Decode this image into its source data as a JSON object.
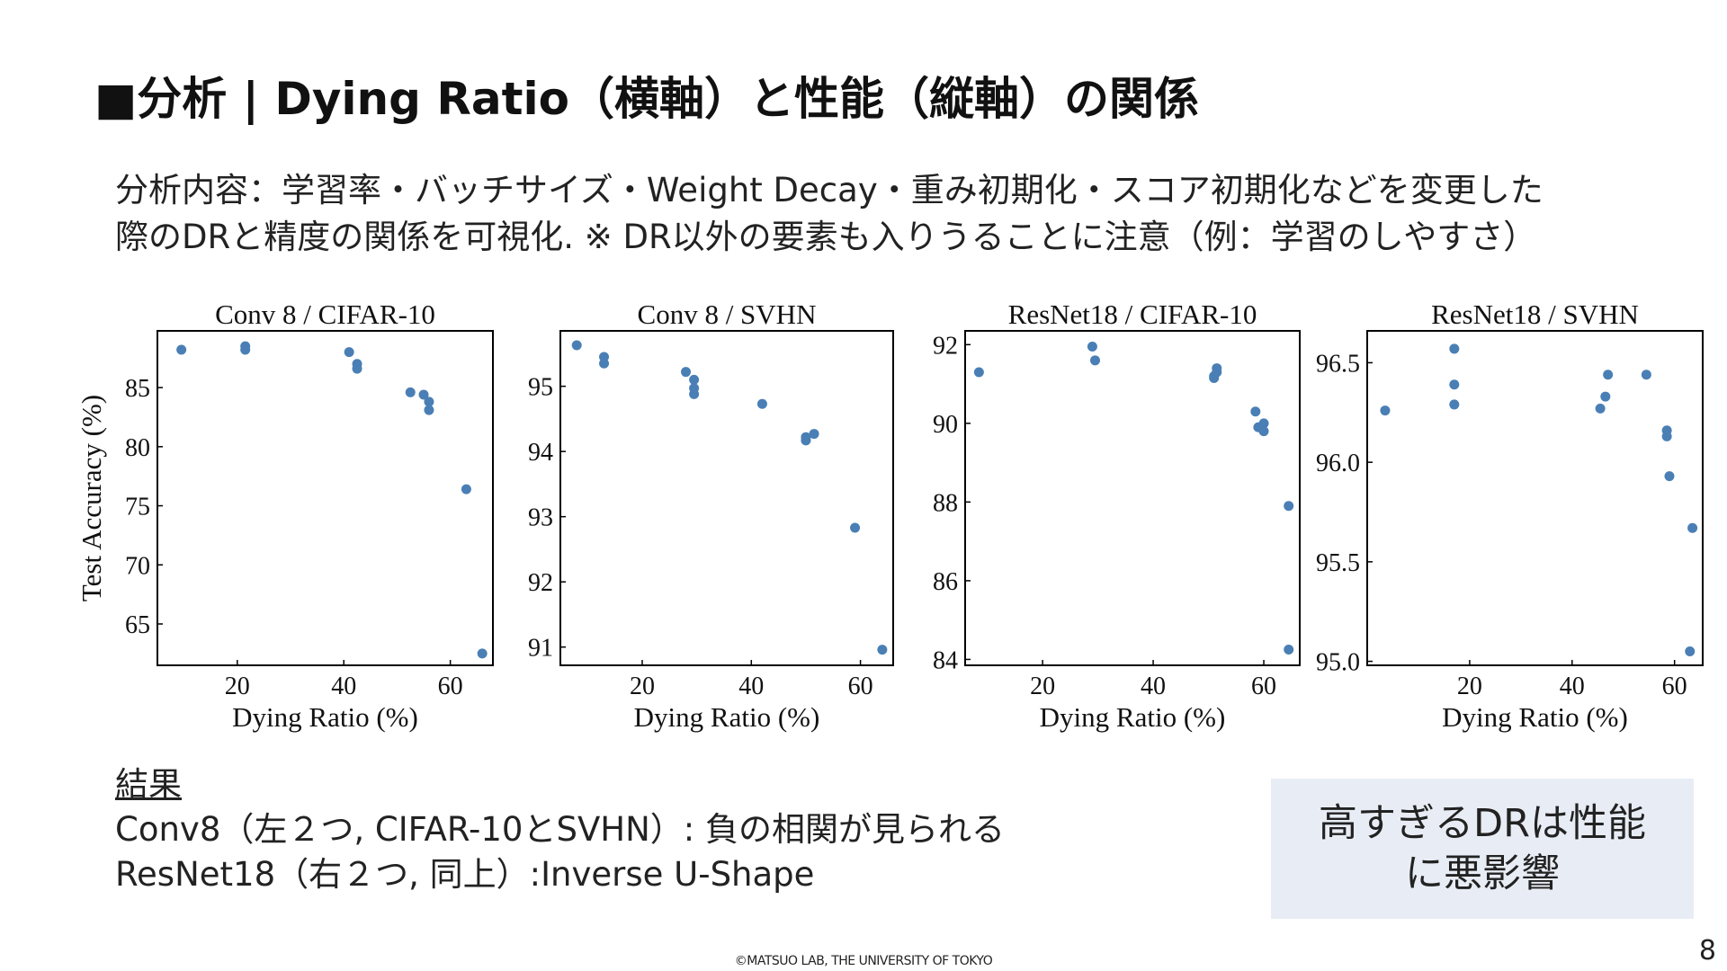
{
  "title": "■分析 | Dying Ratio（横軸）と性能（縦軸）の関係",
  "description": [
    "分析内容：学習率・バッチサイズ・Weight Decay・重み初期化・スコア初期化などを変更した",
    "際のDRと精度の関係を可視化. ※ DR以外の要素も入りうることに注意（例：学習のしやすさ）"
  ],
  "results": {
    "heading": "結果",
    "lines": [
      "Conv8（左２つ, CIFAR-10とSVHN）: 負の相関が見られる",
      "ResNet18（右２つ, 同上）:Inverse U-Shape"
    ]
  },
  "callout": {
    "line1": "高すぎるDRは性能",
    "line2": "に悪影響"
  },
  "footer": "©MATSUO LAB, THE UNIVERSITY  OF TOKYO",
  "page_number": "8",
  "colors": {
    "point": "#4a7fb5",
    "frame": "#000000",
    "callout_bg": "#e8edf5"
  },
  "chart_data": [
    {
      "type": "scatter",
      "title": "Conv 8 / CIFAR-10",
      "xlabel": "Dying Ratio (%)",
      "ylabel": "Test Accuracy (%)",
      "xlim": [
        5,
        68
      ],
      "ylim": [
        61.5,
        89.8
      ],
      "xticks": [
        20,
        40,
        60
      ],
      "yticks": [
        65,
        70,
        75,
        80,
        85
      ],
      "points": [
        [
          9.5,
          88.2
        ],
        [
          21.5,
          88.5
        ],
        [
          21.5,
          88.2
        ],
        [
          41,
          88.0
        ],
        [
          42.5,
          87.0
        ],
        [
          42.5,
          86.6
        ],
        [
          52.5,
          84.6
        ],
        [
          55,
          84.4
        ],
        [
          56,
          83.8
        ],
        [
          56,
          83.1
        ],
        [
          63,
          76.4
        ],
        [
          66,
          62.5
        ]
      ]
    },
    {
      "type": "scatter",
      "title": "Conv 8 / SVHN",
      "xlabel": "Dying Ratio (%)",
      "ylabel": "",
      "xlim": [
        5,
        66
      ],
      "ylim": [
        90.72,
        95.85
      ],
      "xticks": [
        20,
        40,
        60
      ],
      "yticks": [
        91,
        92,
        93,
        94,
        95
      ],
      "points": [
        [
          8,
          95.63
        ],
        [
          13,
          95.45
        ],
        [
          13,
          95.35
        ],
        [
          28,
          95.22
        ],
        [
          29.5,
          95.1
        ],
        [
          29.5,
          94.97
        ],
        [
          29.5,
          94.88
        ],
        [
          42,
          94.73
        ],
        [
          50,
          94.22
        ],
        [
          50,
          94.17
        ],
        [
          51.5,
          94.27
        ],
        [
          59,
          92.83
        ],
        [
          64,
          90.96
        ]
      ]
    },
    {
      "type": "scatter",
      "title": "ResNet18 / CIFAR-10",
      "xlabel": "Dying Ratio (%)",
      "ylabel": "",
      "xlim": [
        6,
        66.5
      ],
      "ylim": [
        83.85,
        92.35
      ],
      "xticks": [
        20,
        40,
        60
      ],
      "yticks": [
        84,
        86,
        88,
        90,
        92
      ],
      "points": [
        [
          8.5,
          91.3
        ],
        [
          29,
          91.95
        ],
        [
          29.5,
          91.6
        ],
        [
          51,
          91.2
        ],
        [
          51,
          91.15
        ],
        [
          51.5,
          91.4
        ],
        [
          51.5,
          91.3
        ],
        [
          58.5,
          90.3
        ],
        [
          59,
          89.9
        ],
        [
          60,
          90.0
        ],
        [
          60,
          89.8
        ],
        [
          64.5,
          87.9
        ],
        [
          64.5,
          84.25
        ]
      ]
    },
    {
      "type": "scatter",
      "title": "ResNet18 / SVHN",
      "xlabel": "Dying Ratio (%)",
      "ylabel": "",
      "xlim": [
        0,
        65.5
      ],
      "ylim": [
        94.98,
        96.66
      ],
      "xticks": [
        20,
        40,
        60
      ],
      "yticks": [
        95.0,
        95.5,
        96.0,
        96.5
      ],
      "points": [
        [
          3.5,
          96.26
        ],
        [
          17,
          96.57
        ],
        [
          17,
          96.39
        ],
        [
          17,
          96.29
        ],
        [
          45.5,
          96.27
        ],
        [
          46.5,
          96.33
        ],
        [
          47,
          96.44
        ],
        [
          54.5,
          96.44
        ],
        [
          58.5,
          96.16
        ],
        [
          58.5,
          96.13
        ],
        [
          59,
          95.93
        ],
        [
          63,
          95.05
        ],
        [
          63.5,
          95.67
        ]
      ]
    }
  ]
}
